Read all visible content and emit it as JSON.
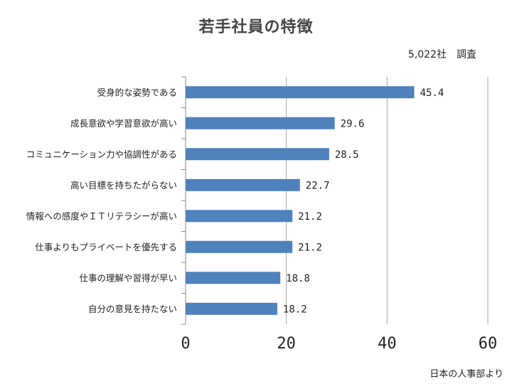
{
  "chart_data": {
    "type": "bar",
    "orientation": "horizontal",
    "title": "若手社員の特徴",
    "subtitle": "5,022社　調査",
    "source": "日本の人事部より",
    "categories": [
      "受身的な姿勢である",
      "成長意欲や学習意欲が高い",
      "コミュニケーション力や協調性がある",
      "高い目標を持ちたがらない",
      "情報への感度やＩＴリテラシーが高い",
      "仕事よりもプライベートを優先する",
      "仕事の理解や習得が早い",
      "自分の意見を持たない"
    ],
    "values": [
      45.4,
      29.6,
      28.5,
      22.7,
      21.2,
      21.2,
      18.8,
      18.2
    ],
    "value_labels": [
      "45.4",
      "29.6",
      "28.5",
      "22.7",
      "21.2",
      "21.2",
      "18.8",
      "18.2"
    ],
    "xlim": [
      0,
      60
    ],
    "xticks": [
      0,
      20,
      40,
      60
    ],
    "xtick_labels": [
      "0",
      "20",
      "40",
      "60"
    ],
    "grid": true,
    "legend": "none",
    "bar_color": "#4F81BD",
    "grid_color": "#A6A6A6"
  }
}
